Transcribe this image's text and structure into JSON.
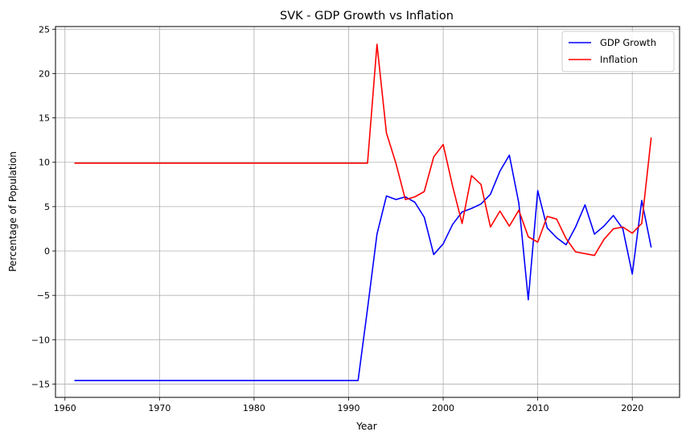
{
  "chart_data": {
    "type": "line",
    "title": "SVK - GDP Growth vs Inflation",
    "xlabel": "Year",
    "ylabel": "Percentage of Population",
    "xlim": [
      1959,
      2025
    ],
    "ylim": [
      -16.5,
      25.3
    ],
    "xticks": [
      1960,
      1970,
      1980,
      1990,
      2000,
      2010,
      2020
    ],
    "yticks": [
      -15,
      -10,
      -5,
      0,
      5,
      10,
      15,
      20,
      25
    ],
    "grid": true,
    "legend_position": "top-right",
    "x": [
      1961,
      1962,
      1963,
      1964,
      1965,
      1966,
      1967,
      1968,
      1969,
      1970,
      1971,
      1972,
      1973,
      1974,
      1975,
      1976,
      1977,
      1978,
      1979,
      1980,
      1981,
      1982,
      1983,
      1984,
      1985,
      1986,
      1987,
      1988,
      1989,
      1990,
      1991,
      1992,
      1993,
      1994,
      1995,
      1996,
      1997,
      1998,
      1999,
      2000,
      2001,
      2002,
      2003,
      2004,
      2005,
      2006,
      2007,
      2008,
      2009,
      2010,
      2011,
      2012,
      2013,
      2014,
      2015,
      2016,
      2017,
      2018,
      2019,
      2020,
      2021,
      2022
    ],
    "series": [
      {
        "name": "GDP Growth",
        "color": "#0000ff",
        "values": [
          -14.6,
          -14.6,
          -14.6,
          -14.6,
          -14.6,
          -14.6,
          -14.6,
          -14.6,
          -14.6,
          -14.6,
          -14.6,
          -14.6,
          -14.6,
          -14.6,
          -14.6,
          -14.6,
          -14.6,
          -14.6,
          -14.6,
          -14.6,
          -14.6,
          -14.6,
          -14.6,
          -14.6,
          -14.6,
          -14.6,
          -14.6,
          -14.6,
          -14.6,
          -14.6,
          -14.6,
          -6.5,
          1.9,
          6.2,
          5.8,
          6.1,
          5.5,
          3.8,
          -0.4,
          0.8,
          3.0,
          4.4,
          4.8,
          5.3,
          6.4,
          9.0,
          10.8,
          5.4,
          -5.5,
          6.8,
          2.6,
          1.5,
          0.7,
          2.7,
          5.2,
          1.9,
          2.8,
          4.0,
          2.5,
          -2.6,
          5.7,
          0.4
        ]
      },
      {
        "name": "Inflation",
        "color": "#ff0000",
        "values": [
          9.9,
          9.9,
          9.9,
          9.9,
          9.9,
          9.9,
          9.9,
          9.9,
          9.9,
          9.9,
          9.9,
          9.9,
          9.9,
          9.9,
          9.9,
          9.9,
          9.9,
          9.9,
          9.9,
          9.9,
          9.9,
          9.9,
          9.9,
          9.9,
          9.9,
          9.9,
          9.9,
          9.9,
          9.9,
          9.9,
          9.9,
          9.9,
          23.3,
          13.3,
          9.9,
          5.8,
          6.1,
          6.7,
          10.6,
          12.0,
          7.3,
          3.1,
          8.5,
          7.5,
          2.7,
          4.5,
          2.8,
          4.6,
          1.6,
          1.0,
          3.9,
          3.6,
          1.4,
          -0.1,
          -0.3,
          -0.5,
          1.3,
          2.5,
          2.7,
          2.0,
          3.1,
          12.8
        ]
      }
    ]
  }
}
